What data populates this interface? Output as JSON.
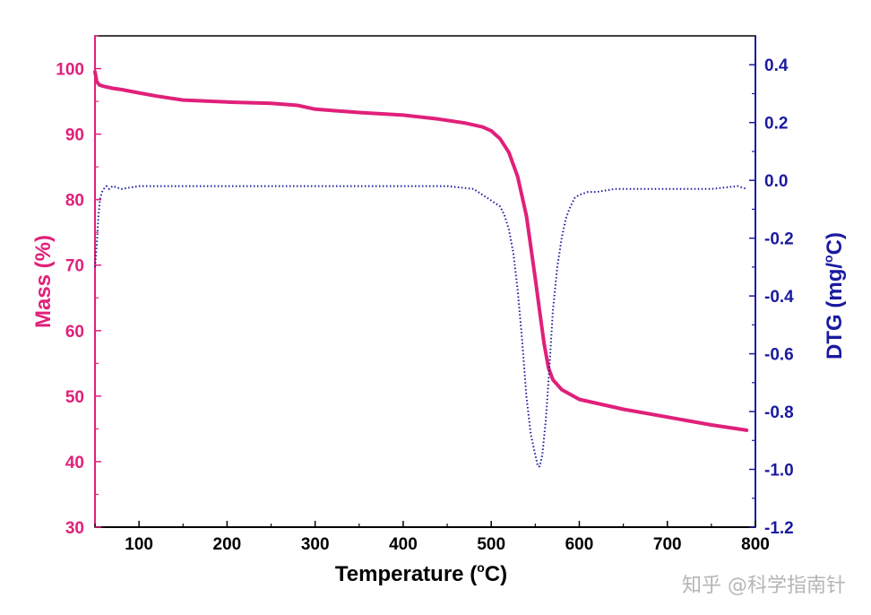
{
  "chart_data": {
    "type": "line",
    "title": "",
    "xlabel": "Temperature  (°C)",
    "xlabel_parts": {
      "main": "Temperature  (",
      "sup": "o",
      "end": "C)"
    },
    "ylabel_left": "Mass (%)",
    "ylabel_right_parts": {
      "main": "DTG (mg/",
      "sup": "o",
      "end": "C)"
    },
    "xlim": [
      50,
      800
    ],
    "ylim_left": [
      30,
      105
    ],
    "ylim_right": [
      -1.2,
      0.5
    ],
    "x_ticks": [
      100,
      200,
      300,
      400,
      500,
      600,
      700,
      800
    ],
    "y_left_ticks": [
      30,
      40,
      50,
      60,
      70,
      80,
      90,
      100
    ],
    "y_right_ticks": [
      -1.2,
      -1.0,
      -0.8,
      -0.6,
      -0.4,
      -0.2,
      0.0,
      0.2,
      0.4
    ],
    "y_right_tick_labels": [
      "-1.2",
      "-1.0",
      "-0.8",
      "-0.6",
      "-0.4",
      "-0.2",
      "0.0",
      "0.2",
      "0.4"
    ],
    "grid": false,
    "legend": "none",
    "colors": {
      "mass": "#e0207a",
      "dtg": "#1a1aa0",
      "left_axis": "#e0207a",
      "right_axis": "#1a1aa0",
      "bottom_axis": "#000000"
    },
    "series": [
      {
        "axis": "left",
        "style": "solid",
        "x": [
          50,
          52,
          55,
          60,
          70,
          80,
          100,
          120,
          150,
          200,
          250,
          280,
          300,
          350,
          400,
          440,
          470,
          490,
          500,
          510,
          520,
          530,
          540,
          550,
          555,
          560,
          565,
          570,
          580,
          600,
          650,
          700,
          750,
          780,
          790
        ],
        "values": [
          99.5,
          98.0,
          97.5,
          97.3,
          97.0,
          96.8,
          96.3,
          95.8,
          95.2,
          94.9,
          94.7,
          94.4,
          93.8,
          93.3,
          92.9,
          92.3,
          91.7,
          91.1,
          90.5,
          89.3,
          87.2,
          83.5,
          77.5,
          68.0,
          63.0,
          58.0,
          54.3,
          52.5,
          51.0,
          49.5,
          48.0,
          46.8,
          45.6,
          45.0,
          44.8
        ]
      },
      {
        "axis": "right",
        "style": "dotted",
        "x": [
          50,
          52,
          54,
          56,
          58,
          60,
          63,
          66,
          70,
          80,
          100,
          150,
          200,
          250,
          300,
          350,
          400,
          450,
          480,
          490,
          500,
          510,
          515,
          520,
          525,
          530,
          535,
          540,
          545,
          550,
          553,
          555,
          558,
          562,
          566,
          570,
          575,
          580,
          585,
          590,
          595,
          600,
          610,
          620,
          640,
          700,
          750,
          780,
          790
        ],
        "values": [
          -0.3,
          -0.22,
          -0.12,
          -0.06,
          -0.04,
          -0.03,
          -0.02,
          -0.03,
          -0.02,
          -0.03,
          -0.02,
          -0.02,
          -0.02,
          -0.02,
          -0.02,
          -0.02,
          -0.02,
          -0.02,
          -0.03,
          -0.05,
          -0.07,
          -0.09,
          -0.12,
          -0.17,
          -0.25,
          -0.38,
          -0.55,
          -0.75,
          -0.88,
          -0.95,
          -0.99,
          -0.99,
          -0.95,
          -0.83,
          -0.65,
          -0.45,
          -0.3,
          -0.2,
          -0.13,
          -0.09,
          -0.06,
          -0.05,
          -0.04,
          -0.04,
          -0.03,
          -0.03,
          -0.03,
          -0.02,
          -0.03
        ]
      }
    ]
  },
  "watermark": "知乎 @科学指南针"
}
